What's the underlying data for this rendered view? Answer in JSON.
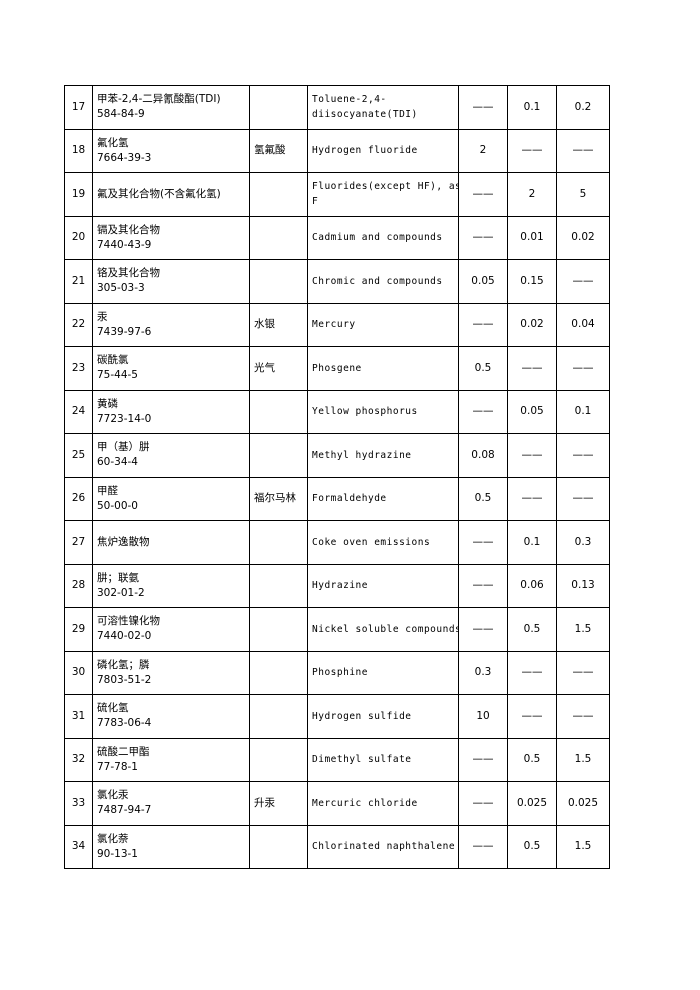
{
  "table": {
    "rows": [
      [
        17,
        [
          "甲苯-2,4-二异氰酸酯(TDI)",
          "584-84-9"
        ],
        null,
        [
          "Toluene-2,4-",
          "diisocyanate(TDI)"
        ],
        "——",
        0.1,
        0.2
      ],
      [
        18,
        [
          "氟化氢",
          "7664-39-3"
        ],
        "氢氟酸",
        [
          "Hydrogen fluoride"
        ],
        2,
        "——",
        "——"
      ],
      [
        19,
        [
          "氟及其化合物(不含氟化氢)"
        ],
        null,
        [
          "Fluorides(except HF), as",
          "F"
        ],
        "——",
        2,
        5
      ],
      [
        20,
        [
          "镉及其化合物",
          "7440-43-9"
        ],
        null,
        [
          "Cadmium and compounds"
        ],
        "——",
        0.01,
        0.02
      ],
      [
        21,
        [
          "铬及其化合物",
          "305-03-3"
        ],
        null,
        [
          "Chromic and compounds"
        ],
        0.05,
        0.15,
        "——"
      ],
      [
        22,
        [
          "汞",
          "7439-97-6"
        ],
        "水银",
        [
          "Mercury"
        ],
        "——",
        0.02,
        0.04
      ],
      [
        23,
        [
          "碳酰氯",
          "75-44-5"
        ],
        "光气",
        [
          "Phosgene"
        ],
        0.5,
        "——",
        "——"
      ],
      [
        24,
        [
          "黄磷",
          "7723-14-0"
        ],
        null,
        [
          "Yellow phosphorus"
        ],
        "——",
        0.05,
        0.1
      ],
      [
        25,
        [
          "甲（基）肼",
          "60-34-4"
        ],
        null,
        [
          "Methyl hydrazine"
        ],
        0.08,
        "——",
        "——"
      ],
      [
        26,
        [
          "甲醛",
          "50-00-0"
        ],
        "福尔马林",
        [
          "Formaldehyde"
        ],
        0.5,
        "——",
        "——"
      ],
      [
        27,
        [
          "焦炉逸散物"
        ],
        null,
        [
          "Coke oven emissions"
        ],
        "——",
        0.1,
        0.3
      ],
      [
        28,
        [
          "肼；联氨",
          "302-01-2"
        ],
        null,
        [
          "Hydrazine"
        ],
        "——",
        0.06,
        0.13
      ],
      [
        29,
        [
          "可溶性镍化物",
          "7440-02-0"
        ],
        null,
        [
          "Nickel soluble compounds"
        ],
        "——",
        0.5,
        1.5
      ],
      [
        30,
        [
          "磷化氢；膦",
          "7803-51-2"
        ],
        null,
        [
          "Phosphine"
        ],
        0.3,
        "——",
        "——"
      ],
      [
        31,
        [
          "硫化氢",
          "7783-06-4"
        ],
        null,
        [
          "Hydrogen sulfide"
        ],
        10,
        "——",
        "——"
      ],
      [
        32,
        [
          "硫酸二甲酯",
          "77-78-1"
        ],
        null,
        [
          "Dimethyl sulfate"
        ],
        "——",
        0.5,
        1.5
      ],
      [
        33,
        [
          "氯化汞",
          "7487-94-7"
        ],
        "升汞",
        [
          "Mercuric chloride"
        ],
        "——",
        0.025,
        0.025
      ],
      [
        34,
        [
          "氯化萘",
          "90-13-1"
        ],
        null,
        [
          "Chlorinated naphthalene"
        ],
        "——",
        0.5,
        1.5
      ]
    ]
  }
}
